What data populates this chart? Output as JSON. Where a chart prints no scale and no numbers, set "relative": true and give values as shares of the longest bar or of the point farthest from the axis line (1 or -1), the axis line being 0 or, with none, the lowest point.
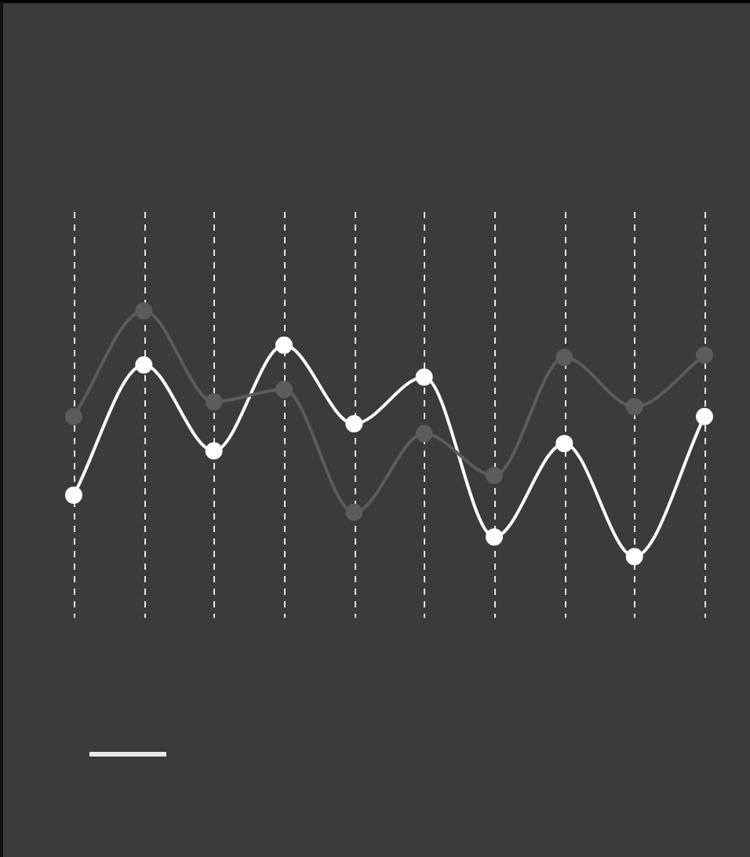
{
  "chart_data": {
    "type": "line",
    "relative": true,
    "grid": "x",
    "marker": "circle",
    "categories": [
      null,
      null,
      null,
      null,
      null,
      null,
      null,
      null,
      null,
      null
    ],
    "series": [
      {
        "color": "#5c5c5c",
        "values": [
          0.57,
          1,
          0.63,
          0.68,
          0.18,
          0.5,
          0.33,
          0.81,
          0.61,
          0.82
        ]
      },
      {
        "color": "#ffffff",
        "values": [
          0.25,
          0.78,
          0.43,
          0.86,
          0.54,
          0.73,
          0.08,
          0.46,
          0,
          0.57
        ]
      }
    ]
  }
}
